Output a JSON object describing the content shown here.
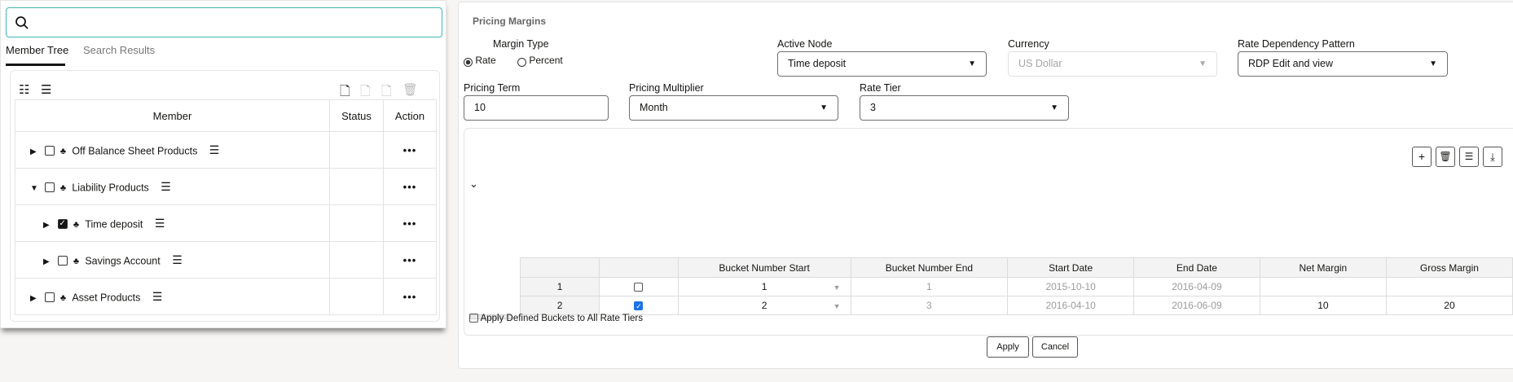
{
  "left": {
    "tabs": [
      {
        "label": "Member Tree",
        "active": true
      },
      {
        "label": "Search Results",
        "active": false
      }
    ],
    "tree_columns": [
      "Member",
      "Status",
      "Action"
    ],
    "rows": [
      {
        "label": "Off Balance Sheet Products",
        "level": 0,
        "expanded": false,
        "checked": false,
        "action": "•••"
      },
      {
        "label": "Liability Products",
        "level": 0,
        "expanded": true,
        "checked": false,
        "action": "•••"
      },
      {
        "label": "Time deposit",
        "level": 1,
        "expanded": false,
        "checked": true,
        "action": "•••"
      },
      {
        "label": "Savings Account",
        "level": 1,
        "expanded": false,
        "checked": false,
        "action": "•••"
      },
      {
        "label": "Asset Products",
        "level": 0,
        "expanded": false,
        "checked": false,
        "action": "•••"
      }
    ]
  },
  "form": {
    "title": "Pricing Margins",
    "margin_type_label": "Margin Type",
    "rate_label": "Rate",
    "percent_label": "Percent",
    "selected": "Rate",
    "active_node_label": "Active Node",
    "active_node": "Time deposit",
    "currency_label": "Currency",
    "currency": "US Dollar",
    "rdp_label": "Rate Dependency Pattern",
    "rdp": "RDP Edit and view",
    "pricing_term_label": "Pricing Term",
    "pricing_term": "10",
    "multiplier_label": "Pricing Multiplier",
    "multiplier": "Month",
    "rate_tier_label": "Rate Tier",
    "rate_tier": "3"
  },
  "grid": {
    "columns": [
      "",
      "",
      "Bucket Number Start",
      "Bucket Number End",
      "Start Date",
      "End Date",
      "Net Margin",
      "Gross Margin"
    ],
    "rows": [
      {
        "n": "1",
        "checked": false,
        "start": "1",
        "end": "1",
        "start_date": "2015-10-10",
        "end_date": "2016-04-09",
        "net": "",
        "gross": ""
      },
      {
        "n": "2",
        "checked": true,
        "start": "2",
        "end": "3",
        "start_date": "2016-04-10",
        "end_date": "2016-06-09",
        "net": "10",
        "gross": "20"
      }
    ],
    "apply_all_label": "Apply Defined Buckets to All Rate Tiers"
  },
  "buttons": {
    "apply": "Apply",
    "cancel": "Cancel"
  }
}
